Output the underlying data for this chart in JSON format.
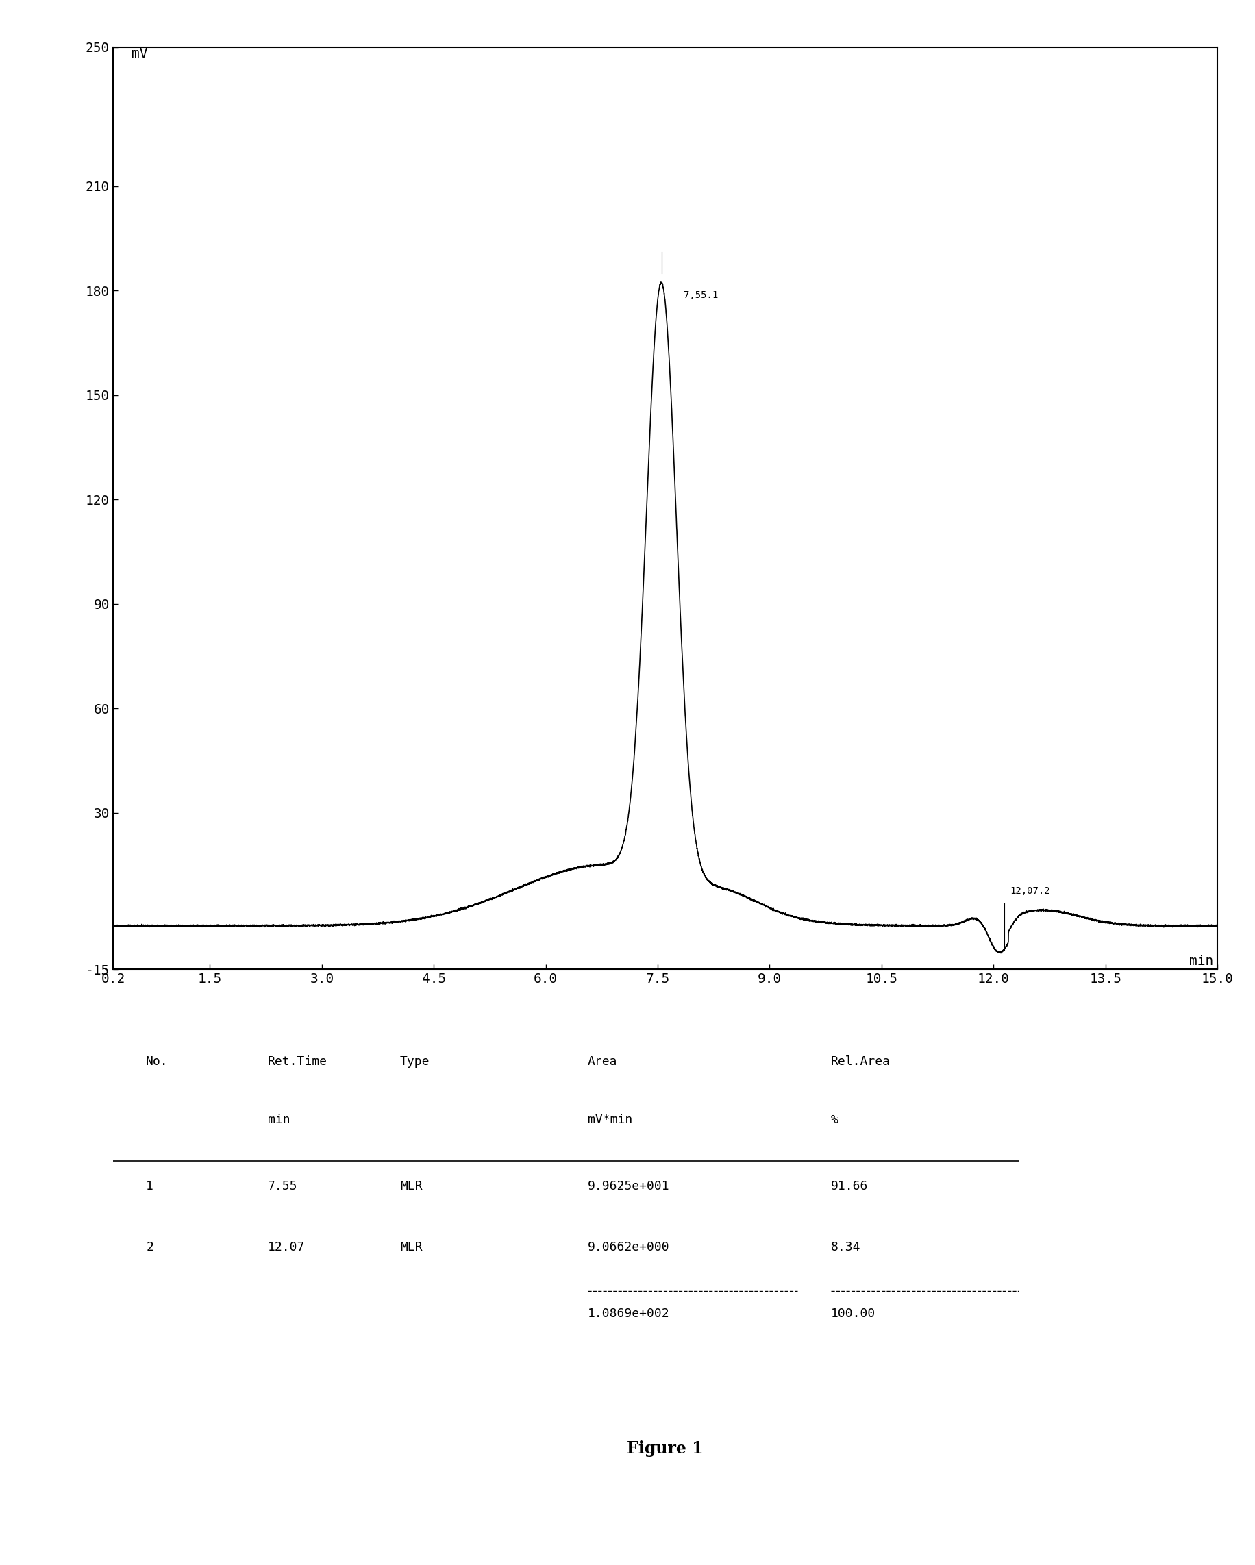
{
  "title": "",
  "ylabel": "mV",
  "xlabel": "min",
  "xlim": [
    0.2,
    15.0
  ],
  "ylim": [
    -15,
    250
  ],
  "yticks": [
    -15,
    30,
    60,
    90,
    120,
    150,
    180,
    210,
    250
  ],
  "xticks": [
    0.2,
    1.5,
    3.0,
    4.5,
    6.0,
    7.5,
    9.0,
    10.5,
    12.0,
    13.5,
    15.0
  ],
  "xtick_labels": [
    "0.2",
    "1.5",
    "3.0",
    "4.5",
    "6.0",
    "7.5",
    "9.0",
    "10.5",
    "12.0",
    "13.5",
    "15.0"
  ],
  "peak1_x": 7.55,
  "peak1_y": 185.0,
  "peak1_label": "7,55.1",
  "peak2_x": 12.07,
  "peak2_y": -10.0,
  "peak2_label": "12,07.2",
  "baseline_y": -2.5,
  "background_color": "#ffffff",
  "line_color": "#000000",
  "figure_caption": "Figure 1",
  "table_headers": [
    "No.",
    "Ret.Time",
    "Type",
    "Area",
    "Rel.Area"
  ],
  "table_subheaders": [
    "",
    "min",
    "",
    "mV*min",
    "%"
  ],
  "table_rows": [
    [
      "1",
      "7.55",
      "MLR",
      "9.9625e+001",
      "91.66"
    ],
    [
      "2",
      "12.07",
      "MLR",
      "9.0662e+000",
      "8.34"
    ]
  ],
  "table_total_area": "1.0869e+002",
  "table_total_rel": "100.00"
}
